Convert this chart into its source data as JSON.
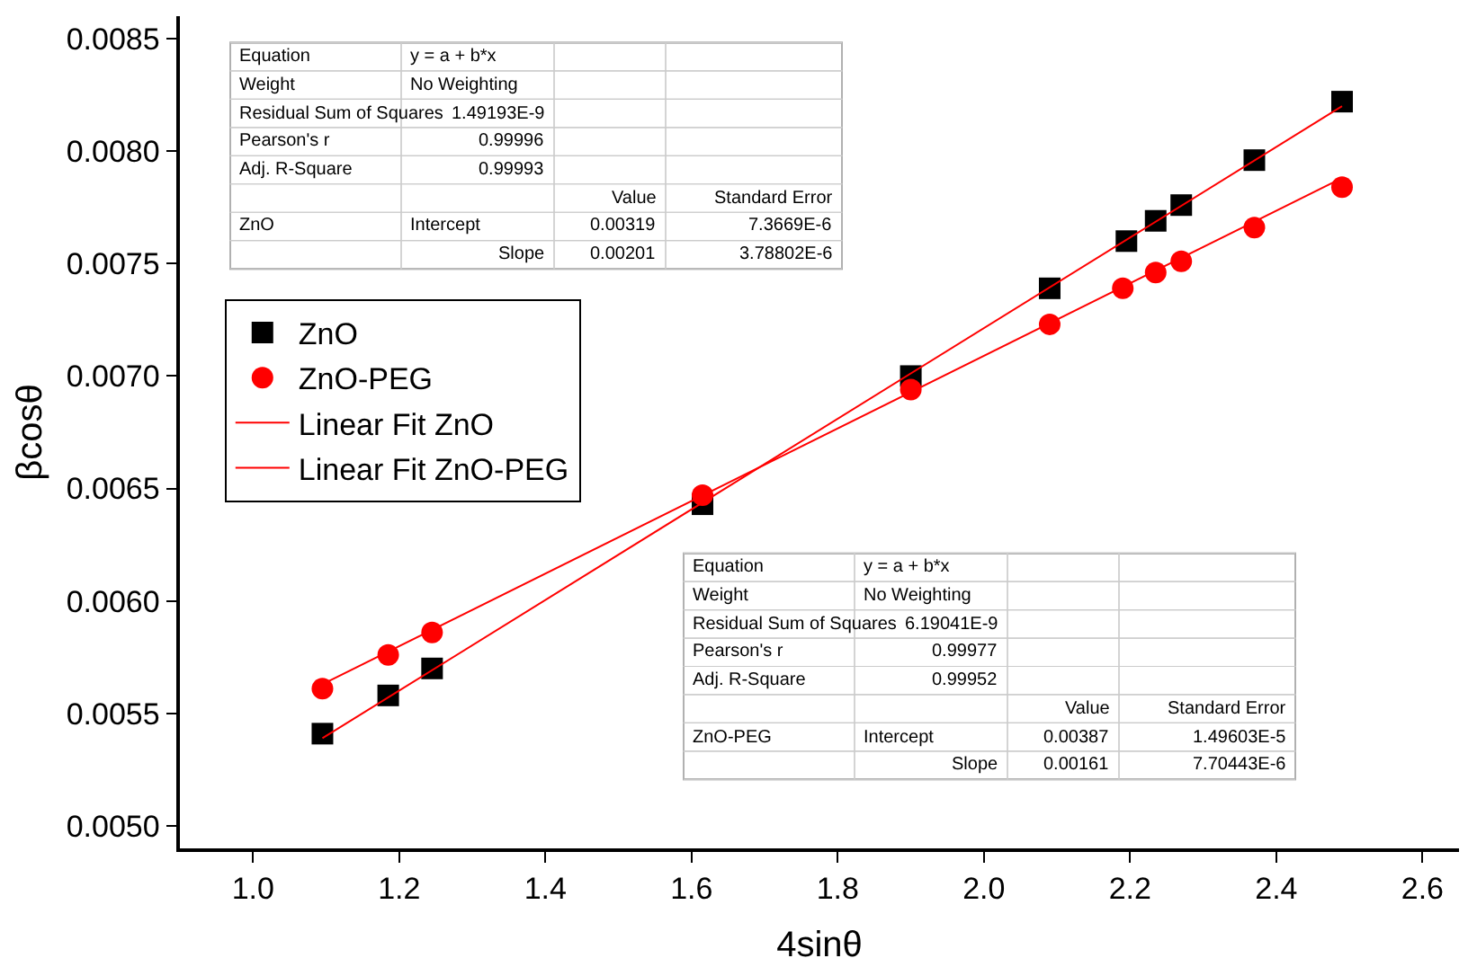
{
  "chart_data": {
    "type": "scatter",
    "xlabel": "4sinθ",
    "ylabel": "βcosθ",
    "xlim": [
      0.9,
      2.65
    ],
    "xticks": [
      {
        "value": 1,
        "label": "1.0"
      },
      1.2,
      1.4,
      1.6,
      1.8,
      {
        "value": 2,
        "label": "2.0"
      },
      2.2,
      2.4,
      2.6
    ],
    "ylim": [
      0.0049,
      0.0086
    ],
    "yticks": [
      {
        "value": 0.005,
        "label": "0.0050"
      },
      0.0055,
      {
        "value": 0.006,
        "label": "0.0060"
      },
      0.0065,
      {
        "value": 0.007,
        "label": "0.0070"
      },
      0.0075,
      {
        "value": 0.008,
        "label": "0.0080"
      },
      0.0085
    ],
    "legend": "top left",
    "series": [
      {
        "name": "ZnO",
        "marker": "square",
        "color": "#000000",
        "x": [
          1.095,
          1.185,
          1.245,
          1.615,
          1.9,
          2.09,
          2.195,
          2.235,
          2.27,
          2.37,
          2.49
        ],
        "values": [
          0.00541,
          0.00558,
          0.0057,
          0.00643,
          0.007,
          0.00739,
          0.0076,
          0.00769,
          0.00776,
          0.00796,
          0.00822
        ]
      },
      {
        "name": "ZnO-PEG",
        "marker": "circle",
        "color": "#ff0000",
        "x": [
          1.095,
          1.185,
          1.245,
          1.615,
          1.9,
          2.09,
          2.19,
          2.235,
          2.27,
          2.37,
          2.49
        ],
        "values": [
          0.00561,
          0.00576,
          0.00586,
          0.00647,
          0.00694,
          0.00723,
          0.00739,
          0.00746,
          0.00751,
          0.00766,
          0.00784
        ]
      },
      {
        "name": "Linear Fit ZnO",
        "type": "line",
        "marker": "none",
        "color": "#ff0000",
        "x": [
          1.095,
          2.49
        ],
        "values": [
          0.00539,
          0.0082
        ]
      },
      {
        "name": "Linear Fit ZnO-PEG",
        "type": "line",
        "marker": "none",
        "color": "#ff0000",
        "x": [
          1.095,
          2.49
        ],
        "values": [
          0.00563,
          0.00788
        ]
      }
    ],
    "annotations": [
      "Equation\ty = a + b*x\t\t\nWeight\tNo Weighting\t\t\nResidual Sum of Squares\t1.49193E-9\t\t\nPearson's r\t0.99996\t\t\nAdj. R-Square\t0.99993\t\t\n\t\tValue\tStandard Error\nZnO\tIntercept\t0.00319\t7.3669E-6\n\tSlope\t0.00201\t3.78802E-6",
      "Equation\ty = a + b*x\t\t\nWeight\tNo Weighting\t\t\nResidual Sum of Squares\t6.19041E-9\t\t\nPearson's r\t0.99977\t\t\nAdj. R-Square\t0.99952\t\t\n\t\tValue\tStandard Error\nZnO-PEG\tIntercept\t0.00387\t1.49603E-5\n\tSlope\t0.00161\t7.70443E-6"
    ]
  }
}
